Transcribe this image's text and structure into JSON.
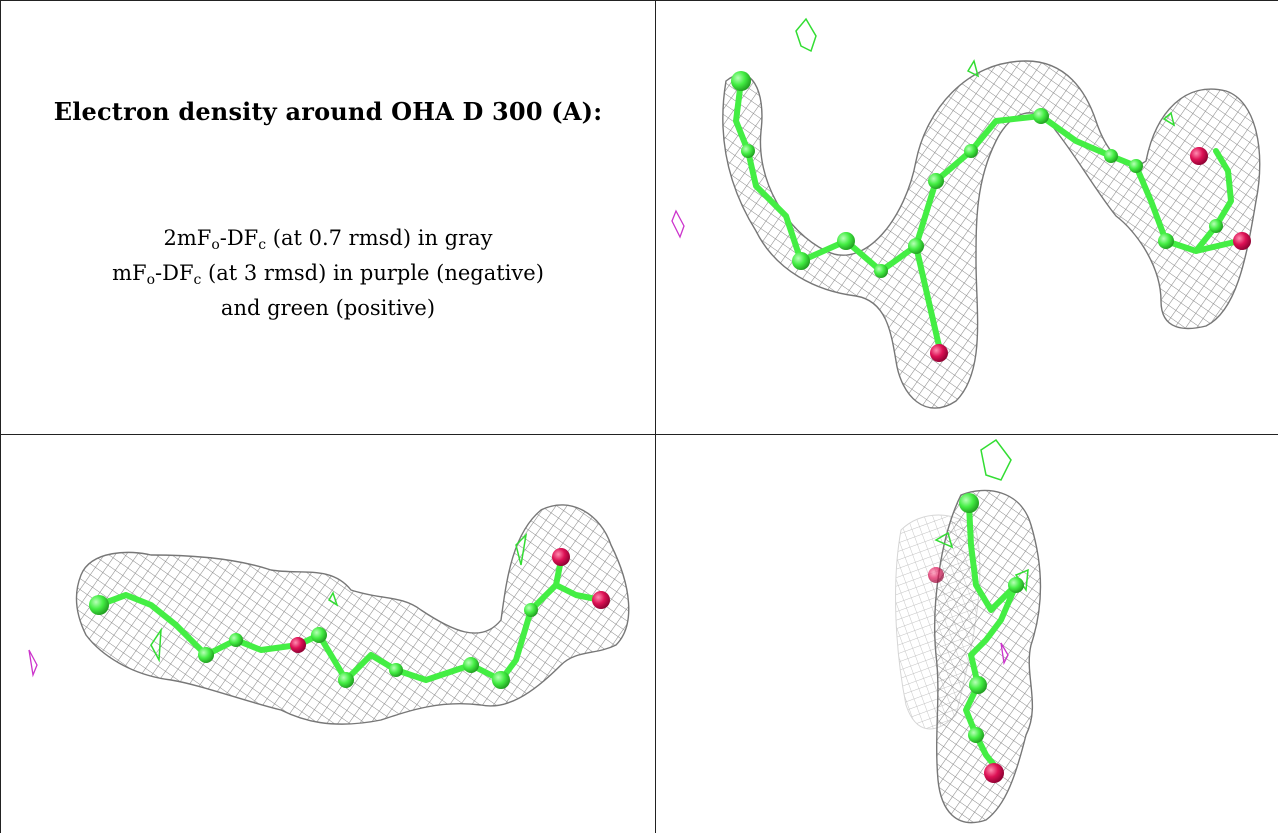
{
  "caption": {
    "title": "Electron density around OHA D 300 (A):",
    "line1_prefix": "2mF",
    "line1_sub1": "o",
    "line1_mid": "-DF",
    "line1_sub2": "c",
    "line1_suffix": " (at 0.7 rmsd) in gray",
    "line2_prefix": "mF",
    "line2_sub1": "o",
    "line2_mid": "-DF",
    "line2_sub2": "c",
    "line2_suffix": " (at 3 rmsd) in purple (negative)",
    "line3": "and green (positive)"
  },
  "colors": {
    "mesh_2fofc": "#8a8a8a",
    "mesh_fofc_negative": "#cc33cc",
    "mesh_fofc_positive": "#33dd33",
    "carbon": "#44ee44",
    "oxygen": "#dd1155"
  },
  "views": [
    {
      "name": "view-top-right",
      "molecule": "OHA"
    },
    {
      "name": "view-bottom-left",
      "molecule": "OHA"
    },
    {
      "name": "view-bottom-right",
      "molecule": "OHA"
    }
  ]
}
